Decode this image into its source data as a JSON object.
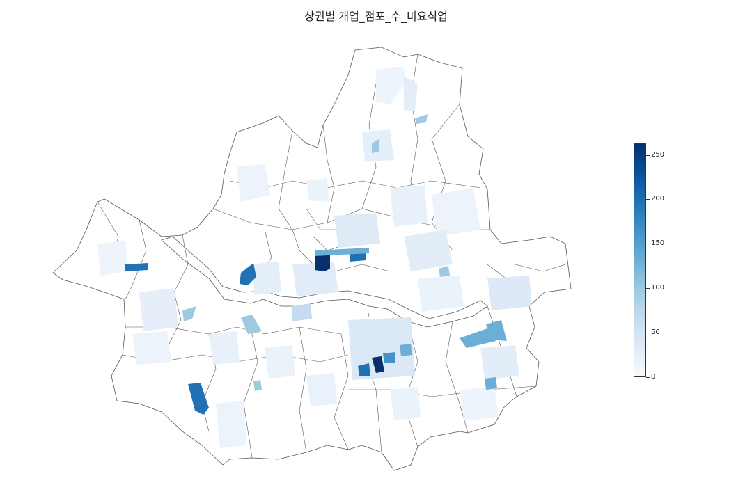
{
  "title": "상권별 개업_점포_수_비요식업",
  "colorbar": {
    "min": 0,
    "max": 263,
    "ticks": [
      0,
      50,
      100,
      150,
      200,
      250
    ],
    "tick_labels": [
      "0",
      "50",
      "100",
      "150",
      "200",
      "250"
    ],
    "colors": [
      "#f7fbff",
      "#deebf7",
      "#c6dbef",
      "#9ecae1",
      "#6baed6",
      "#4292c6",
      "#2171b5",
      "#08519c",
      "#08306b"
    ]
  },
  "highlighted_areas": [
    {
      "id": "jongno-center",
      "value": 262
    },
    {
      "id": "euljiro-east",
      "value": 215
    },
    {
      "id": "gangnam-station",
      "value": 255
    },
    {
      "id": "gangnam-west",
      "value": 190
    },
    {
      "id": "gangseo-magok",
      "value": 210
    },
    {
      "id": "guro-digital",
      "value": 225
    },
    {
      "id": "mapo-hongdae",
      "value": 195
    },
    {
      "id": "songpa-garden",
      "value": 120
    },
    {
      "id": "songpa-munjeong",
      "value": 135
    },
    {
      "id": "myeongdong",
      "value": 90
    },
    {
      "id": "yongsan",
      "value": 70
    },
    {
      "id": "yeouido",
      "value": 95
    },
    {
      "id": "gangseo-west",
      "value": 110
    },
    {
      "id": "nowon-north",
      "value": 105
    },
    {
      "id": "dobong",
      "value": 80
    },
    {
      "id": "jamsil",
      "value": 85
    },
    {
      "id": "gangdong-east",
      "value": 125
    },
    {
      "id": "seocho",
      "value": 150
    }
  ]
}
